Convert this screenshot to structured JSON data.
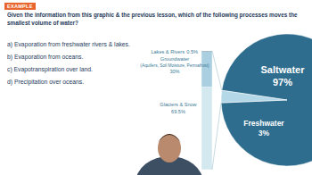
{
  "header": "EXAMPLE",
  "question": "Given the information from this graphic & the previous lesson, which of the following processes moves the smallest volume of water?",
  "options": [
    "a) Evaporation from freshwater rivers & lakes.",
    "b) Evaporation from oceans.",
    "c) Evapotranspiration over land.",
    "d) Precipitation over oceans."
  ],
  "chart_data": [
    {
      "type": "bar",
      "stacked": true,
      "categories": [
        null
      ],
      "ylim": [
        0,
        100
      ],
      "tick_labels": false,
      "data_labels": true,
      "series": [
        {
          "name": "Lakes & Rivers",
          "color": "#2f5f73",
          "values": [
            0.5
          ],
          "value_labels": [
            "0.5%"
          ]
        },
        {
          "name": "Groundwater",
          "color": "#a9cfe0",
          "values": [
            30
          ],
          "value_labels": [
            "30%"
          ]
        },
        {
          "name": "Glaciers & Snow",
          "color": "#d4e8f0",
          "values": [
            69.5
          ],
          "value_labels": [
            "69.5%"
          ]
        }
      ],
      "annotations": [
        "(Aquifers, Soil Moisture, Permafrost)"
      ]
    },
    {
      "type": "pie",
      "categories": [
        "Saltwater",
        "Freshwater"
      ],
      "values": [
        97,
        3
      ],
      "value_labels": [
        "97%",
        "3%"
      ],
      "colors": [
        "#2e6d8e",
        "#b5d8e8"
      ],
      "data_labels": true
    }
  ]
}
